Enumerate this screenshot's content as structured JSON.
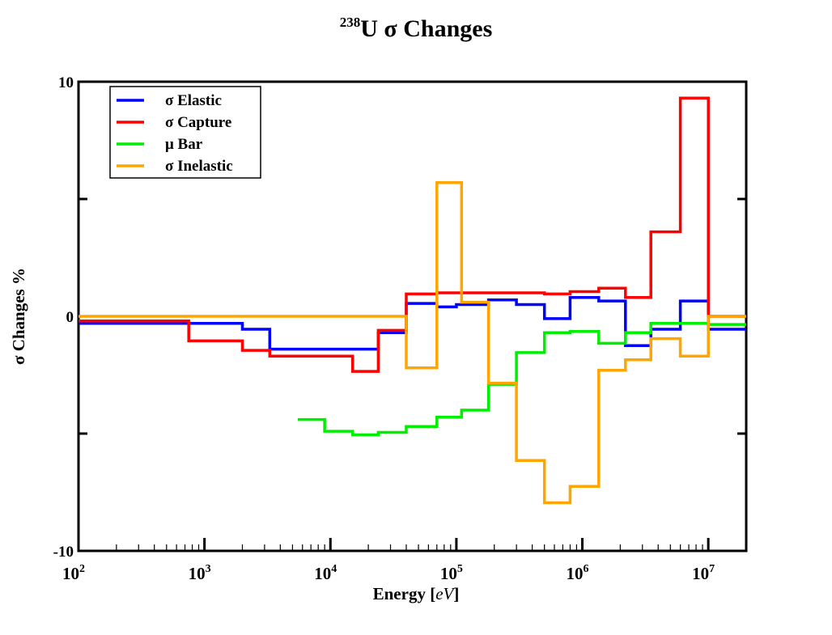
{
  "chart_data": {
    "type": "line",
    "step": true,
    "title_sup": "238",
    "title_main": "U σ  Changes",
    "xlabel_text": "Energy [",
    "xlabel_italic": "eV",
    "xlabel_close": "]",
    "ylabel": "σ Changes %",
    "x_scale": "log",
    "xlim": [
      100,
      20000000
    ],
    "ylim": [
      -10,
      10
    ],
    "grid": false,
    "legend_position": "top-left",
    "x_ticks": [
      {
        "value": 100,
        "base": "10",
        "exp": "2"
      },
      {
        "value": 1000,
        "base": "10",
        "exp": "3"
      },
      {
        "value": 10000,
        "base": "10",
        "exp": "4"
      },
      {
        "value": 100000,
        "base": "10",
        "exp": "5"
      },
      {
        "value": 1000000,
        "base": "10",
        "exp": "6"
      },
      {
        "value": 10000000,
        "base": "10",
        "exp": "7"
      }
    ],
    "y_ticks": [
      {
        "value": 10,
        "label": "10"
      },
      {
        "value": 5,
        "label": ""
      },
      {
        "value": 0,
        "label": "0"
      },
      {
        "value": -5,
        "label": ""
      },
      {
        "value": -10,
        "label": "-10"
      }
    ],
    "series": [
      {
        "name": "σ  Elastic",
        "color": "#0000ff",
        "x": [
          100,
          450,
          2000,
          3300,
          15000,
          24000,
          40000,
          70000,
          100000,
          180000,
          300000,
          500000,
          800000,
          1350000,
          2200000,
          3500000,
          6000000,
          10000000
        ],
        "y": [
          -0.3,
          -0.3,
          -0.55,
          -1.4,
          -1.4,
          -0.7,
          0.55,
          0.4,
          0.5,
          0.7,
          0.5,
          -0.1,
          0.8,
          0.65,
          -1.25,
          -0.55,
          0.65,
          -0.55
        ]
      },
      {
        "name": "σ  Capture",
        "color": "#ff0000",
        "x": [
          100,
          450,
          750,
          2000,
          3300,
          15000,
          24000,
          40000,
          70000,
          100000,
          180000,
          300000,
          500000,
          800000,
          1350000,
          2200000,
          3500000,
          6000000,
          10000000
        ],
        "y": [
          -0.2,
          -0.2,
          -1.05,
          -1.45,
          -1.7,
          -2.35,
          -0.6,
          0.95,
          1.0,
          1.0,
          1.0,
          1.0,
          0.95,
          1.05,
          1.2,
          0.8,
          3.6,
          9.3,
          0
        ]
      },
      {
        "name": "μ  Bar",
        "color": "#00ee00",
        "x": [
          5500,
          9000,
          15000,
          24000,
          40000,
          70000,
          110000,
          180000,
          300000,
          500000,
          800000,
          1350000,
          2200000,
          3500000,
          6000000,
          10000000
        ],
        "y": [
          -4.4,
          -4.9,
          -5.05,
          -4.95,
          -4.7,
          -4.3,
          -4.0,
          -2.9,
          -1.55,
          -0.7,
          -0.65,
          -1.15,
          -0.7,
          -0.3,
          -0.3,
          -0.35
        ]
      },
      {
        "name": "σ  Inelastic",
        "color": "#ffa500",
        "x": [
          100,
          40000,
          70000,
          110000,
          180000,
          300000,
          500000,
          800000,
          1350000,
          2200000,
          3500000,
          6000000,
          10000000
        ],
        "y": [
          0,
          -2.2,
          5.7,
          0.6,
          -2.85,
          -6.15,
          -7.95,
          -7.25,
          -2.3,
          -1.85,
          -0.95,
          -1.7,
          0
        ]
      }
    ]
  }
}
